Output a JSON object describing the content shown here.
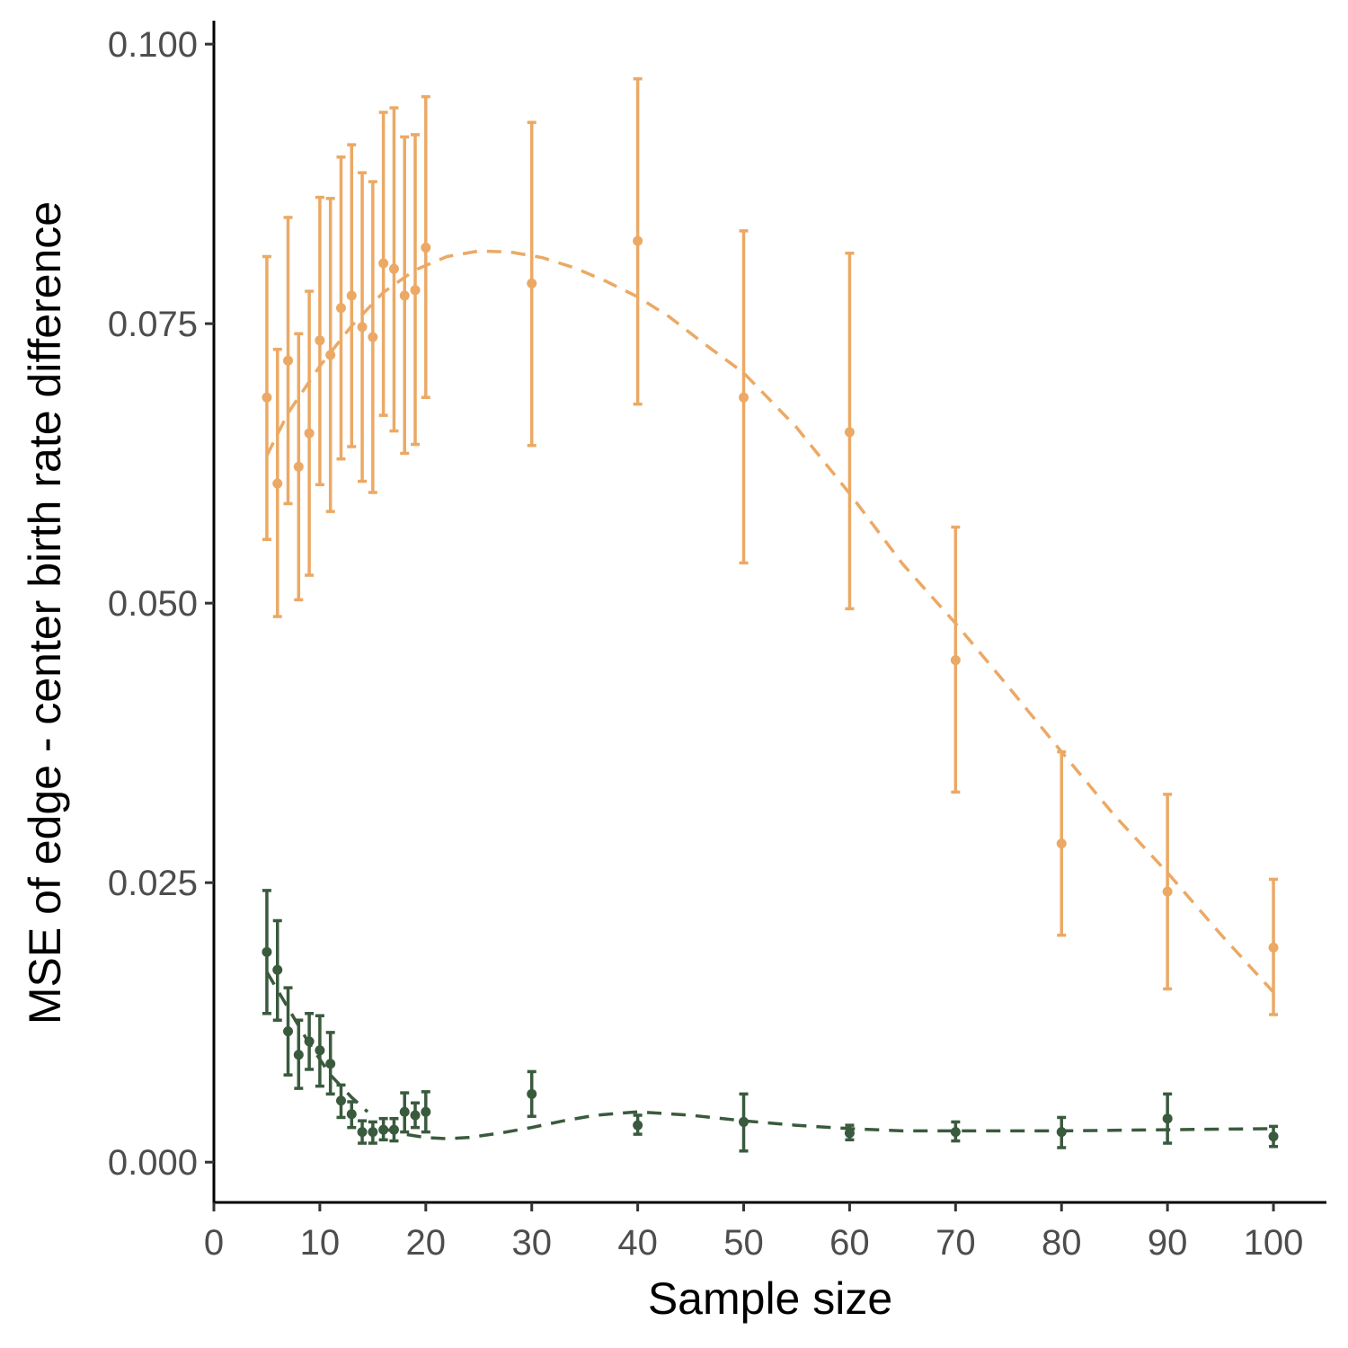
{
  "chart_data": {
    "type": "scatter",
    "xlabel": "Sample size",
    "ylabel": "MSE of edge - center birth rate difference",
    "xlim": [
      0,
      105
    ],
    "ylim": [
      -0.0036,
      0.1021
    ],
    "x_ticks": [
      0,
      10,
      20,
      30,
      40,
      50,
      60,
      70,
      80,
      90,
      100
    ],
    "x_tick_labels": [
      "0",
      "10",
      "20",
      "30",
      "40",
      "50",
      "60",
      "70",
      "80",
      "90",
      "100"
    ],
    "y_ticks": [
      0.0,
      0.025,
      0.05,
      0.075,
      0.1
    ],
    "y_tick_labels": [
      "0.000",
      "0.025",
      "0.050",
      "0.075",
      "0.100"
    ],
    "grid": false,
    "legend": "none",
    "series": [
      {
        "color": "#EBA965",
        "points": [
          {
            "x": 5,
            "y": 0.0684,
            "lo": 0.0557,
            "hi": 0.081
          },
          {
            "x": 6,
            "y": 0.0607,
            "lo": 0.0488,
            "hi": 0.0727
          },
          {
            "x": 7,
            "y": 0.0717,
            "lo": 0.0589,
            "hi": 0.0845
          },
          {
            "x": 8,
            "y": 0.0622,
            "lo": 0.0503,
            "hi": 0.0741
          },
          {
            "x": 9,
            "y": 0.0652,
            "lo": 0.0525,
            "hi": 0.0779
          },
          {
            "x": 10,
            "y": 0.0735,
            "lo": 0.0606,
            "hi": 0.0863
          },
          {
            "x": 11,
            "y": 0.0722,
            "lo": 0.0582,
            "hi": 0.0862
          },
          {
            "x": 12,
            "y": 0.0764,
            "lo": 0.0629,
            "hi": 0.0899
          },
          {
            "x": 13,
            "y": 0.0775,
            "lo": 0.064,
            "hi": 0.091
          },
          {
            "x": 14,
            "y": 0.0747,
            "lo": 0.0609,
            "hi": 0.0885
          },
          {
            "x": 15,
            "y": 0.0738,
            "lo": 0.0599,
            "hi": 0.0877
          },
          {
            "x": 16,
            "y": 0.0804,
            "lo": 0.0668,
            "hi": 0.0939
          },
          {
            "x": 17,
            "y": 0.0799,
            "lo": 0.0654,
            "hi": 0.0943
          },
          {
            "x": 18,
            "y": 0.0775,
            "lo": 0.0634,
            "hi": 0.0917
          },
          {
            "x": 19,
            "y": 0.078,
            "lo": 0.0642,
            "hi": 0.0919
          },
          {
            "x": 20,
            "y": 0.0818,
            "lo": 0.0684,
            "hi": 0.0953
          },
          {
            "x": 30,
            "y": 0.0786,
            "lo": 0.0641,
            "hi": 0.093
          },
          {
            "x": 40,
            "y": 0.0824,
            "lo": 0.0678,
            "hi": 0.0969
          },
          {
            "x": 50,
            "y": 0.0684,
            "lo": 0.0536,
            "hi": 0.0833
          },
          {
            "x": 60,
            "y": 0.0653,
            "lo": 0.0495,
            "hi": 0.0813
          },
          {
            "x": 70,
            "y": 0.0449,
            "lo": 0.0331,
            "hi": 0.0568
          },
          {
            "x": 80,
            "y": 0.0285,
            "lo": 0.0203,
            "hi": 0.0367
          },
          {
            "x": 90,
            "y": 0.0242,
            "lo": 0.0155,
            "hi": 0.0329
          },
          {
            "x": 100,
            "y": 0.0192,
            "lo": 0.0132,
            "hi": 0.0253
          }
        ],
        "trend": [
          [
            5,
            0.0632
          ],
          [
            7,
            0.067
          ],
          [
            10,
            0.0712
          ],
          [
            13,
            0.0748
          ],
          [
            16,
            0.0778
          ],
          [
            19,
            0.0798
          ],
          [
            22,
            0.081
          ],
          [
            25,
            0.0815
          ],
          [
            28,
            0.0814
          ],
          [
            31,
            0.0809
          ],
          [
            34,
            0.08
          ],
          [
            37,
            0.0788
          ],
          [
            40,
            0.0774
          ],
          [
            43,
            0.0756
          ],
          [
            46,
            0.0734
          ],
          [
            50,
            0.0706
          ],
          [
            55,
            0.0657
          ],
          [
            60,
            0.0598
          ],
          [
            65,
            0.0535
          ],
          [
            70,
            0.0482
          ],
          [
            75,
            0.0425
          ],
          [
            80,
            0.0367
          ],
          [
            85,
            0.031
          ],
          [
            90,
            0.0259
          ],
          [
            95,
            0.0204
          ],
          [
            100,
            0.0152
          ]
        ]
      },
      {
        "color": "#3A5A3E",
        "points": [
          {
            "x": 5,
            "y": 0.0188,
            "lo": 0.0133,
            "hi": 0.0243
          },
          {
            "x": 6,
            "y": 0.0172,
            "lo": 0.0127,
            "hi": 0.0216
          },
          {
            "x": 7,
            "y": 0.0117,
            "lo": 0.0078,
            "hi": 0.0156
          },
          {
            "x": 8,
            "y": 0.0096,
            "lo": 0.0066,
            "hi": 0.0127
          },
          {
            "x": 9,
            "y": 0.0108,
            "lo": 0.0083,
            "hi": 0.0133
          },
          {
            "x": 10,
            "y": 0.01,
            "lo": 0.0068,
            "hi": 0.0131
          },
          {
            "x": 11,
            "y": 0.0088,
            "lo": 0.0061,
            "hi": 0.0116
          },
          {
            "x": 12,
            "y": 0.0055,
            "lo": 0.004,
            "hi": 0.0069
          },
          {
            "x": 13,
            "y": 0.0043,
            "lo": 0.0031,
            "hi": 0.0054
          },
          {
            "x": 14,
            "y": 0.0027,
            "lo": 0.0017,
            "hi": 0.0037
          },
          {
            "x": 15,
            "y": 0.0027,
            "lo": 0.0017,
            "hi": 0.0036
          },
          {
            "x": 16,
            "y": 0.0029,
            "lo": 0.002,
            "hi": 0.0039
          },
          {
            "x": 17,
            "y": 0.0029,
            "lo": 0.0019,
            "hi": 0.0039
          },
          {
            "x": 18,
            "y": 0.0045,
            "lo": 0.0027,
            "hi": 0.0062
          },
          {
            "x": 19,
            "y": 0.0042,
            "lo": 0.0031,
            "hi": 0.0053
          },
          {
            "x": 20,
            "y": 0.0045,
            "lo": 0.0027,
            "hi": 0.0063
          },
          {
            "x": 30,
            "y": 0.0061,
            "lo": 0.0041,
            "hi": 0.0081
          },
          {
            "x": 40,
            "y": 0.0033,
            "lo": 0.0025,
            "hi": 0.0042
          },
          {
            "x": 50,
            "y": 0.0036,
            "lo": 0.001,
            "hi": 0.0061
          },
          {
            "x": 60,
            "y": 0.0026,
            "lo": 0.002,
            "hi": 0.0033
          },
          {
            "x": 70,
            "y": 0.0027,
            "lo": 0.0019,
            "hi": 0.0036
          },
          {
            "x": 80,
            "y": 0.0027,
            "lo": 0.0013,
            "hi": 0.004
          },
          {
            "x": 90,
            "y": 0.0039,
            "lo": 0.0017,
            "hi": 0.0061
          },
          {
            "x": 100,
            "y": 0.0023,
            "lo": 0.0014,
            "hi": 0.0032
          }
        ],
        "trend_segments": [
          [
            [
              5,
              0.017
            ],
            [
              7,
              0.0138
            ],
            [
              9,
              0.0106
            ],
            [
              11,
              0.0078
            ],
            [
              13,
              0.0058
            ],
            [
              14.5,
              0.0045
            ]
          ],
          [
            [
              16,
              0.003
            ],
            [
              18,
              0.0025
            ],
            [
              20,
              0.0022
            ],
            [
              22,
              0.0021
            ],
            [
              24,
              0.0022
            ],
            [
              27,
              0.0026
            ],
            [
              30,
              0.0031
            ],
            [
              33,
              0.0037
            ],
            [
              36,
              0.0042
            ],
            [
              40,
              0.0045
            ],
            [
              45,
              0.0042
            ],
            [
              50,
              0.0037
            ],
            [
              55,
              0.0033
            ],
            [
              60,
              0.003
            ],
            [
              65,
              0.0028
            ],
            [
              70,
              0.0028
            ],
            [
              80,
              0.0028
            ],
            [
              90,
              0.0029
            ],
            [
              100,
              0.003
            ]
          ]
        ]
      }
    ]
  }
}
